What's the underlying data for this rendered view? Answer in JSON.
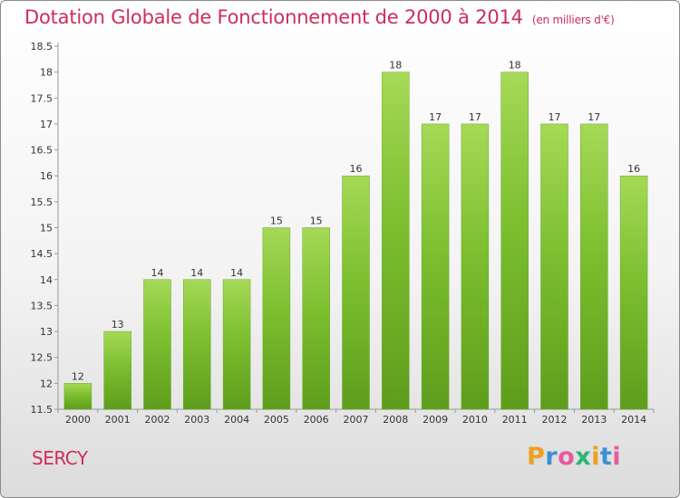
{
  "title": "Dotation Globale de Fonctionnement de 2000 à 2014",
  "subtitle": "(en milliers d'€)",
  "commune": "SERCY",
  "logo": {
    "letters": [
      "P",
      "r",
      "o",
      "x",
      "i",
      "t",
      "i"
    ],
    "colors": [
      "#f0a020",
      "#3b8fd6",
      "#e85a9e",
      "#2bb673",
      "#f0a020",
      "#3b8fd6",
      "#e85a9e"
    ]
  },
  "chart_data": {
    "type": "bar",
    "title": "Dotation Globale de Fonctionnement de 2000 à 2014",
    "subtitle": "(en milliers d'€)",
    "categories": [
      "2000",
      "2001",
      "2002",
      "2003",
      "2004",
      "2005",
      "2006",
      "2007",
      "2008",
      "2009",
      "2010",
      "2011",
      "2012",
      "2013",
      "2014"
    ],
    "values": [
      12,
      13,
      14,
      14,
      14,
      15,
      15,
      16,
      18,
      17,
      17,
      18,
      17,
      17,
      16
    ],
    "ylim": [
      11.5,
      18.5
    ],
    "yticks": [
      "11.5",
      "12",
      "12.5",
      "13",
      "13.5",
      "14",
      "14.5",
      "15",
      "15.5",
      "16",
      "16.5",
      "17",
      "17.5",
      "18",
      "18.5"
    ],
    "grid": false,
    "bar_color": "#7cbf2f",
    "bar_color_light": "#a6d957",
    "bar_color_dark": "#5e9d1c"
  }
}
